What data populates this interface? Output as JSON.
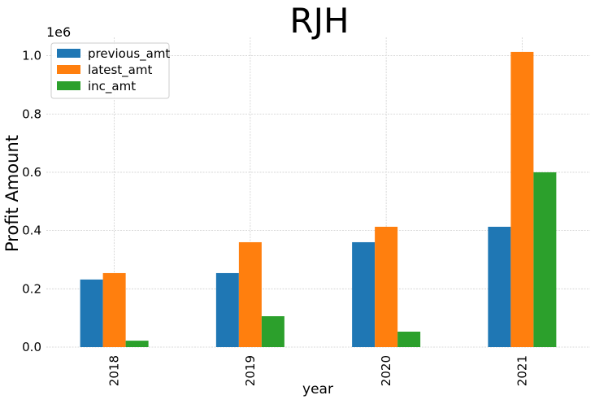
{
  "chart_data": {
    "type": "bar",
    "title": "RJH",
    "xlabel": "year",
    "ylabel": "Profit Amount",
    "offset_label": "1e6",
    "categories": [
      "2018",
      "2019",
      "2020",
      "2021"
    ],
    "series": [
      {
        "name": "previous_amt",
        "color": "#1f77b4",
        "values": [
          232000,
          254000,
          360000,
          413000
        ]
      },
      {
        "name": "latest_amt",
        "color": "#ff7f0e",
        "values": [
          254000,
          360000,
          413000,
          1013000
        ]
      },
      {
        "name": "inc_amt",
        "color": "#2ca02c",
        "values": [
          22000,
          106000,
          53000,
          600000
        ]
      }
    ],
    "ylim": [
      0,
      1063000
    ],
    "yticks": [
      0,
      200000,
      400000,
      600000,
      800000,
      1000000
    ],
    "ytick_labels": [
      "0.0",
      "0.2",
      "0.4",
      "0.6",
      "0.8",
      "1.0"
    ],
    "grid": true,
    "legend_position": "top-left",
    "xtick_rotation": "vertical"
  }
}
